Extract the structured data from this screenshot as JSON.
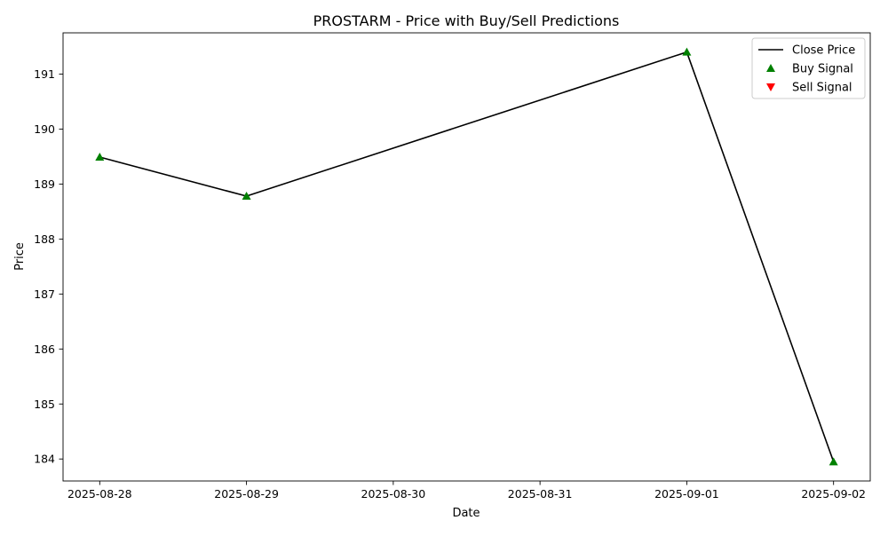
{
  "chart_data": {
    "type": "line",
    "title": "PROSTARM - Price with Buy/Sell Predictions",
    "xlabel": "Date",
    "ylabel": "Price",
    "x_ticks": [
      "2025-08-28",
      "2025-08-29",
      "2025-08-30",
      "2025-08-31",
      "2025-09-01",
      "2025-09-02"
    ],
    "y_ticks": [
      184,
      185,
      186,
      187,
      188,
      189,
      190,
      191
    ],
    "xlim": [
      "2025-08-27",
      "2025-09-02"
    ],
    "ylim": [
      183.6,
      191.75
    ],
    "grid": false,
    "legend_position": "top-right",
    "series": [
      {
        "name": "Close Price",
        "kind": "line",
        "color": "#000000",
        "points": [
          {
            "x": "2025-08-28",
            "y": 189.49
          },
          {
            "x": "2025-08-29",
            "y": 188.78
          },
          {
            "x": "2025-09-01",
            "y": 191.4
          },
          {
            "x": "2025-09-02",
            "y": 183.95
          }
        ]
      },
      {
        "name": "Buy Signal",
        "kind": "scatter",
        "marker": "triangle-up",
        "color": "#008000",
        "points": [
          {
            "x": "2025-08-28",
            "y": 189.49
          },
          {
            "x": "2025-08-29",
            "y": 188.78
          },
          {
            "x": "2025-09-01",
            "y": 191.4
          },
          {
            "x": "2025-09-02",
            "y": 183.95
          }
        ]
      },
      {
        "name": "Sell Signal",
        "kind": "scatter",
        "marker": "triangle-down",
        "color": "#ff0000",
        "points": []
      }
    ]
  }
}
